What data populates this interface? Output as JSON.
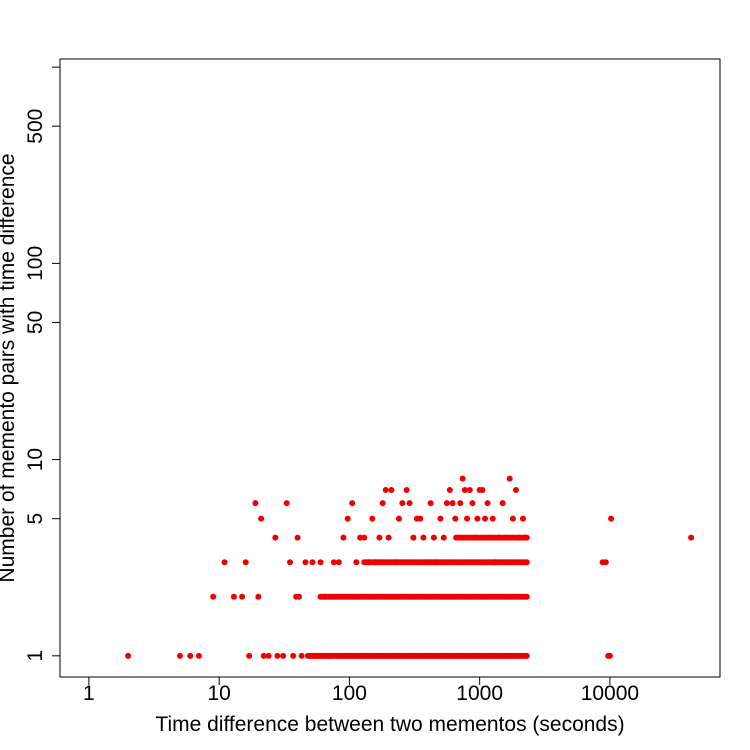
{
  "chart_data": {
    "type": "scatter",
    "title": "",
    "xlabel": "Time difference between two mementos (seconds)",
    "ylabel": "Number of memento pairs with time difference",
    "x_scale": "log",
    "y_scale": "log",
    "xlim": [
      0.6,
      70000
    ],
    "ylim": [
      0.78,
      1100
    ],
    "x_ticks": [
      {
        "value": 1,
        "label": "1"
      },
      {
        "value": 10,
        "label": "10"
      },
      {
        "value": 100,
        "label": "100"
      },
      {
        "value": 1000,
        "label": "1000"
      },
      {
        "value": 10000,
        "label": "10000"
      }
    ],
    "y_ticks": [
      {
        "value": 1,
        "label": "1"
      },
      {
        "value": 5,
        "label": "5"
      },
      {
        "value": 10,
        "label": "10"
      },
      {
        "value": 50,
        "label": "50"
      },
      {
        "value": 100,
        "label": "100"
      },
      {
        "value": 500,
        "label": "500"
      },
      {
        "value": 1000,
        "label": ""
      }
    ],
    "grid": false,
    "legend": "none",
    "point_color": "#ee0000",
    "series": [
      {
        "points": [
          {
            "x": 2,
            "y": 1
          },
          {
            "x": 5,
            "y": 1
          },
          {
            "x": 6,
            "y": 1
          },
          {
            "x": 7,
            "y": 1
          },
          {
            "x": 9,
            "y": 2
          },
          {
            "x": 11,
            "y": 3
          },
          {
            "x": 13,
            "y": 2
          },
          {
            "x": 15,
            "y": 2
          },
          {
            "x": 16,
            "y": 3
          },
          {
            "x": 17,
            "y": 1
          },
          {
            "x": 19,
            "y": 6
          },
          {
            "x": 20,
            "y": 2
          },
          {
            "x": 21,
            "y": 5
          },
          {
            "x": 22,
            "y": 1
          },
          {
            "x": 24,
            "y": 1
          },
          {
            "x": 27,
            "y": 4
          },
          {
            "x": 28,
            "y": 1
          },
          {
            "x": 31,
            "y": 1
          },
          {
            "x": 33,
            "y": 6
          },
          {
            "x": 35,
            "y": 3
          },
          {
            "x": 37,
            "y": 1
          },
          {
            "x": 39,
            "y": 2
          },
          {
            "x": 40,
            "y": 4
          },
          {
            "x": 41,
            "y": 2
          },
          {
            "x": 43,
            "y": 1
          },
          {
            "x": 46,
            "y": 3
          },
          {
            "x": 48,
            "y": 1
          },
          {
            "x": 52,
            "y": 3
          },
          {
            "x": 56,
            "y": 1
          },
          {
            "x": 60,
            "y": 3
          },
          {
            "x": 65,
            "y": 2
          },
          {
            "x": 70,
            "y": 1
          },
          {
            "x": 76,
            "y": 3
          },
          {
            "x": 83,
            "y": 3
          },
          {
            "x": 90,
            "y": 4
          },
          {
            "x": 97,
            "y": 5
          },
          {
            "x": 105,
            "y": 6
          },
          {
            "x": 113,
            "y": 3
          },
          {
            "x": 121,
            "y": 4
          },
          {
            "x": 130,
            "y": 4
          },
          {
            "x": 140,
            "y": 3
          },
          {
            "x": 150,
            "y": 5
          },
          {
            "x": 160,
            "y": 3
          },
          {
            "x": 170,
            "y": 4
          },
          {
            "x": 180,
            "y": 6
          },
          {
            "x": 190,
            "y": 7
          },
          {
            "x": 200,
            "y": 4
          },
          {
            "x": 210,
            "y": 7
          },
          {
            "x": 225,
            "y": 3
          },
          {
            "x": 240,
            "y": 5
          },
          {
            "x": 255,
            "y": 6
          },
          {
            "x": 275,
            "y": 7
          },
          {
            "x": 290,
            "y": 6
          },
          {
            "x": 310,
            "y": 4
          },
          {
            "x": 330,
            "y": 5
          },
          {
            "x": 350,
            "y": 5
          },
          {
            "x": 370,
            "y": 4
          },
          {
            "x": 390,
            "y": 3
          },
          {
            "x": 420,
            "y": 6
          },
          {
            "x": 445,
            "y": 4
          },
          {
            "x": 470,
            "y": 3
          },
          {
            "x": 500,
            "y": 5
          },
          {
            "x": 530,
            "y": 4
          },
          {
            "x": 560,
            "y": 6
          },
          {
            "x": 590,
            "y": 7
          },
          {
            "x": 620,
            "y": 6
          },
          {
            "x": 650,
            "y": 5
          },
          {
            "x": 680,
            "y": 4
          },
          {
            "x": 710,
            "y": 6
          },
          {
            "x": 740,
            "y": 8
          },
          {
            "x": 770,
            "y": 7
          },
          {
            "x": 800,
            "y": 5
          },
          {
            "x": 840,
            "y": 7
          },
          {
            "x": 880,
            "y": 6
          },
          {
            "x": 920,
            "y": 4
          },
          {
            "x": 960,
            "y": 5
          },
          {
            "x": 1000,
            "y": 7
          },
          {
            "x": 1050,
            "y": 7
          },
          {
            "x": 1100,
            "y": 5
          },
          {
            "x": 1150,
            "y": 6
          },
          {
            "x": 1200,
            "y": 4
          },
          {
            "x": 1260,
            "y": 5
          },
          {
            "x": 1320,
            "y": 3
          },
          {
            "x": 1400,
            "y": 4
          },
          {
            "x": 1500,
            "y": 6
          },
          {
            "x": 1600,
            "y": 4
          },
          {
            "x": 1700,
            "y": 8
          },
          {
            "x": 1800,
            "y": 5
          },
          {
            "x": 1900,
            "y": 7
          },
          {
            "x": 2000,
            "y": 4
          },
          {
            "x": 2150,
            "y": 5
          },
          {
            "x": 2250,
            "y": 4
          },
          {
            "x": 8800,
            "y": 3
          },
          {
            "x": 9300,
            "y": 3
          },
          {
            "x": 9700,
            "y": 1
          },
          {
            "x": 10000,
            "y": 1
          },
          {
            "x": 10200,
            "y": 5
          },
          {
            "x": 42000,
            "y": 4
          }
        ],
        "bands": [
          {
            "y": 1,
            "x_from": 50,
            "x_to": 2300,
            "n": 150
          },
          {
            "y": 2,
            "x_from": 60,
            "x_to": 2300,
            "n": 115
          },
          {
            "y": 3,
            "x_from": 130,
            "x_to": 2300,
            "n": 90
          },
          {
            "y": 4,
            "x_from": 660,
            "x_to": 2300,
            "n": 30
          }
        ]
      }
    ]
  }
}
